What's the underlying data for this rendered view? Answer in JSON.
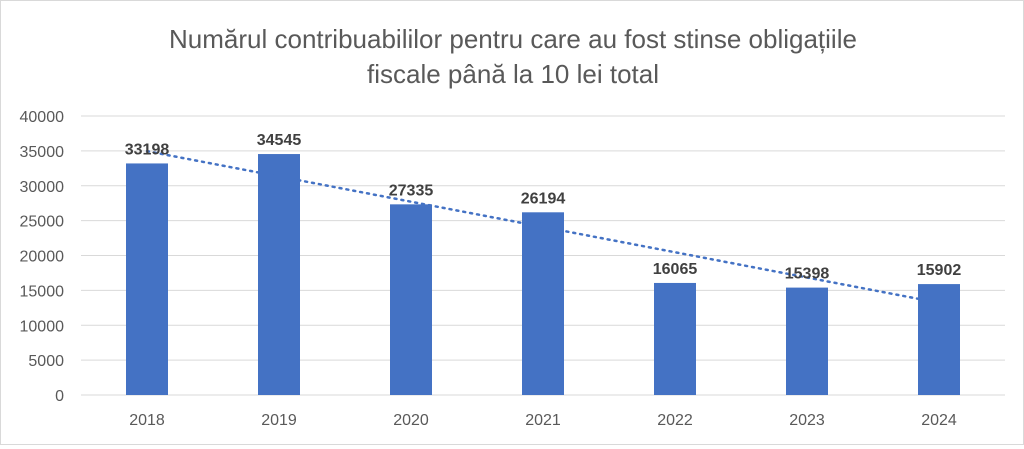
{
  "chart_data": {
    "type": "bar",
    "title_lines": [
      "Numărul contribuabililor pentru care au fost stinse obligațiile",
      "fiscale până la 10 lei total"
    ],
    "categories": [
      "2018",
      "2019",
      "2020",
      "2021",
      "2022",
      "2023",
      "2024"
    ],
    "values": [
      33198,
      34545,
      27335,
      26194,
      16065,
      15398,
      15902
    ],
    "ylim": [
      0,
      40000
    ],
    "yticks": [
      0,
      5000,
      10000,
      15000,
      20000,
      25000,
      30000,
      35000,
      40000
    ],
    "grid": true,
    "trendline": "linear",
    "colors": {
      "bar": "#4472C4",
      "trendline": "#4472C4",
      "title": "#595959",
      "label": "#404040",
      "grid": "#d9d9d9"
    }
  }
}
